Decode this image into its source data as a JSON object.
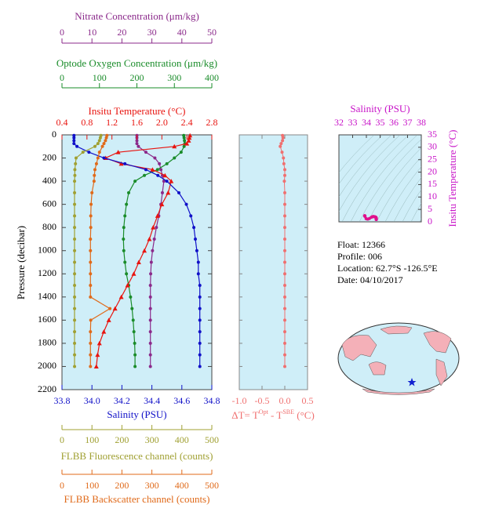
{
  "chart_data": [
    {
      "type": "profile",
      "ylabel": "Pressure (decibar)",
      "y": [
        5,
        25,
        50,
        75,
        100,
        150,
        200,
        250,
        300,
        350,
        400,
        500,
        600,
        700,
        800,
        900,
        1000,
        1100,
        1200,
        1300,
        1400,
        1500,
        1600,
        1700,
        1800,
        1900,
        2000
      ],
      "ylim": [
        0,
        2200
      ],
      "yticks": [
        0,
        200,
        400,
        600,
        800,
        1000,
        1200,
        1400,
        1600,
        1800,
        2000,
        2200
      ],
      "series": [
        {
          "name": "Nitrate Concentration (μm/kg)",
          "color": "#8b2a8b",
          "side": "top",
          "marker": "circle",
          "xlim": [
            0,
            50
          ],
          "xticks": [
            0,
            10,
            20,
            30,
            40,
            50
          ],
          "values": [
            25,
            25,
            25,
            25,
            25.5,
            28,
            31,
            32.5,
            33,
            33.5,
            34,
            33.5,
            33,
            32.3,
            31.5,
            30.8,
            30.2,
            29.8,
            29.6,
            29.5,
            29.5,
            29.5,
            29.5,
            29.5,
            29.5,
            29.5,
            29.5
          ]
        },
        {
          "name": "Optode Oxygen Concentration (μm/kg)",
          "color": "#1a8c2a",
          "side": "top",
          "marker": "circle",
          "xlim": [
            0,
            400
          ],
          "xticks": [
            0,
            100,
            200,
            300,
            400
          ],
          "values": [
            325,
            326,
            327,
            328,
            326,
            318,
            300,
            280,
            255,
            220,
            195,
            178,
            172,
            168,
            165,
            164,
            165,
            168,
            172,
            178,
            183,
            187,
            190,
            192,
            194,
            195,
            195
          ]
        },
        {
          "name": "Insitu Temperature (°C)",
          "color": "#e8140f",
          "side": "top",
          "marker": "triangle",
          "xlim": [
            0.4,
            2.8
          ],
          "xticks": [
            0.4,
            0.8,
            1.2,
            1.6,
            {
              "value": 2,
              "label": "2.0"
            },
            2.4,
            2.8
          ],
          "values": [
            2.45,
            2.44,
            2.43,
            2.4,
            2.2,
            1.3,
            1.1,
            1.35,
            1.85,
            2.05,
            2.15,
            2.1,
            2.0,
            1.93,
            1.86,
            1.8,
            1.72,
            1.63,
            1.55,
            1.45,
            1.35,
            1.25,
            1.15,
            1.07,
            1.0,
            0.97,
            0.95
          ]
        },
        {
          "name": "Salinity (PSU)",
          "color": "#1010c8",
          "side": "bottom",
          "marker": "circle",
          "xlim": [
            33.8,
            34.8
          ],
          "xticks": [
            33.8,
            {
              "value": 34,
              "label": "34.0"
            },
            34.2,
            34.4,
            34.6,
            34.8
          ],
          "values": [
            33.88,
            33.88,
            33.88,
            33.88,
            33.9,
            33.98,
            34.08,
            34.22,
            34.36,
            34.44,
            34.5,
            34.58,
            34.63,
            34.66,
            34.68,
            34.69,
            34.7,
            34.71,
            34.71,
            34.72,
            34.72,
            34.72,
            34.72,
            34.72,
            34.72,
            34.72,
            34.72
          ]
        },
        {
          "name": "FLBB Fluorescence channel (counts)",
          "color": "#a0a032",
          "side": "bottom",
          "marker": "circle",
          "xlim": [
            0,
            500
          ],
          "xticks": [
            0,
            100,
            200,
            300,
            400,
            500
          ],
          "values": [
            130,
            128,
            125,
            120,
            110,
            70,
            47,
            45,
            43,
            43,
            42,
            42,
            42,
            42,
            42,
            42,
            42,
            42,
            42,
            42,
            42,
            42,
            42,
            42,
            42,
            42,
            42
          ]
        },
        {
          "name": "FLBB Backscatter channel (counts)",
          "color": "#e06a1a",
          "side": "bottom",
          "marker": "circle",
          "xlim": [
            0,
            500
          ],
          "xticks": [
            0,
            100,
            200,
            300,
            400,
            500
          ],
          "values": [
            150,
            148,
            145,
            140,
            135,
            125,
            120,
            115,
            110,
            108,
            107,
            100,
            97,
            96,
            96,
            95,
            95,
            95,
            95,
            95,
            95,
            160,
            96,
            95,
            95,
            95,
            95
          ]
        }
      ]
    },
    {
      "type": "delta",
      "xlabel": [
        "ΔT= T",
        "Opt",
        " - T",
        "SBE",
        " (°C)"
      ],
      "color": "#f07070",
      "xlim": [
        -1.0,
        0.5
      ],
      "xticks": [
        {
          "value": -1,
          "label": "-1.0"
        },
        -0.5,
        {
          "value": 0,
          "label": "0.0"
        },
        0.5
      ],
      "values": [
        -0.05,
        -0.04,
        -0.05,
        -0.08,
        -0.1,
        -0.06,
        -0.03,
        -0.02,
        0,
        0,
        -0.01,
        0,
        0,
        0,
        0,
        0,
        0,
        0,
        0,
        0,
        0,
        0,
        0,
        0,
        0,
        0,
        0
      ]
    },
    {
      "type": "ts",
      "xlabel": "Salinity (PSU)",
      "ylabel": "Insitu Temperature (°C)",
      "color": "#e0108c",
      "xlim": [
        32,
        38
      ],
      "xticks": [
        32,
        33,
        34,
        35,
        36,
        37,
        38
      ],
      "ylim": [
        0,
        35
      ],
      "yticks": [
        0,
        5,
        10,
        15,
        20,
        25,
        30,
        35
      ]
    }
  ],
  "info": [
    "Float:  12366",
    "Profile:  006",
    "Location:  62.7°S  -126.5°E",
    "Date:  04/10/2017"
  ]
}
